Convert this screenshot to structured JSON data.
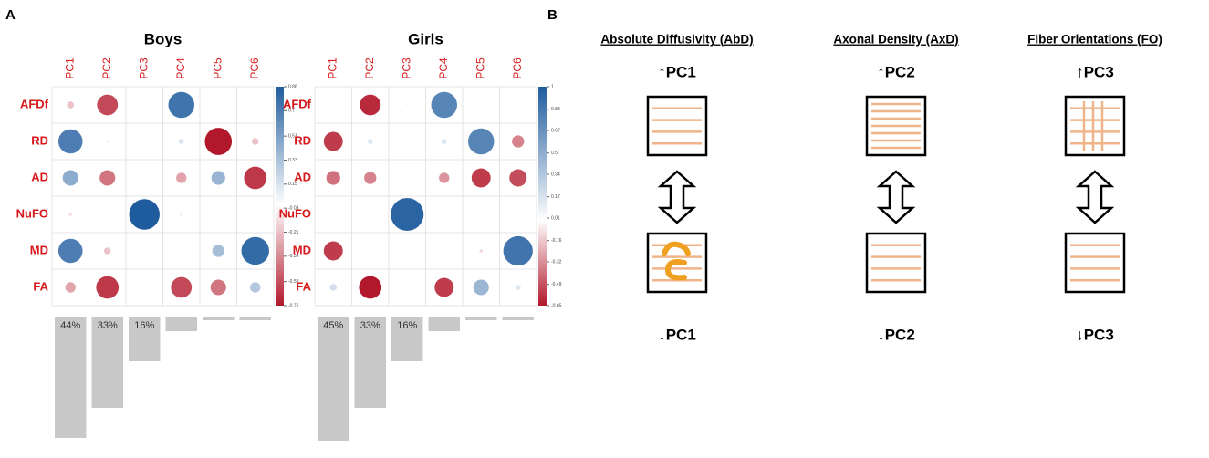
{
  "panel_a_label": "A",
  "chart_data": [
    {
      "type": "corrplot",
      "title": "Boys",
      "columns": [
        "PC1",
        "PC2",
        "PC3",
        "PC4",
        "PC5",
        "PC6"
      ],
      "rows": [
        "AFDf",
        "RD",
        "AD",
        "NuFO",
        "MD",
        "FA"
      ],
      "values": [
        [
          -0.2,
          -0.6,
          0.03,
          0.75,
          0.02,
          0.02
        ],
        [
          0.7,
          0.08,
          0.05,
          0.15,
          -0.78,
          -0.2
        ],
        [
          0.45,
          -0.45,
          0.02,
          -0.3,
          0.4,
          -0.65
        ],
        [
          -0.1,
          0.02,
          0.88,
          -0.08,
          0.01,
          0.01
        ],
        [
          0.7,
          -0.2,
          0.05,
          0.02,
          0.35,
          0.8
        ],
        [
          -0.3,
          -0.65,
          0.02,
          -0.6,
          -0.45,
          0.3
        ]
      ],
      "clim": [
        -0.76,
        0.88
      ],
      "colorbar_ticks": [
        0.88,
        0.7,
        0.51,
        0.33,
        0.15,
        -0.03,
        -0.21,
        -0.39,
        -0.58,
        -0.76
      ],
      "colors": {
        "negative": "#b2182b",
        "zero": "#ffffff",
        "positive": "#1f5c9e"
      },
      "variance": {
        "values": [
          44,
          33,
          16,
          5,
          1,
          1
        ],
        "value_labels": [
          "44%",
          "33%",
          "16%",
          null,
          null,
          null
        ],
        "color": "#c8c8c8"
      }
    },
    {
      "type": "corrplot",
      "title": "Girls",
      "columns": [
        "PC1",
        "PC2",
        "PC3",
        "PC4",
        "PC5",
        "PC6"
      ],
      "rows": [
        "AFDf",
        "RD",
        "AD",
        "NuFO",
        "MD",
        "FA"
      ],
      "values": [
        [
          0.02,
          -0.6,
          0.05,
          0.75,
          0.03,
          0.02
        ],
        [
          -0.55,
          0.15,
          0.03,
          0.15,
          0.75,
          -0.35
        ],
        [
          -0.4,
          -0.35,
          0.02,
          -0.3,
          -0.55,
          -0.5
        ],
        [
          0.05,
          0.03,
          0.95,
          0.02,
          0.01,
          0.01
        ],
        [
          -0.55,
          0.05,
          0.05,
          0.02,
          -0.1,
          0.85
        ],
        [
          0.2,
          -0.65,
          0.02,
          -0.55,
          0.45,
          0.15
        ]
      ],
      "clim": [
        -0.65,
        1
      ],
      "colorbar_ticks": [
        1,
        0.83,
        0.67,
        0.5,
        0.34,
        0.17,
        0.01,
        -0.16,
        -0.32,
        -0.49,
        -0.65
      ],
      "colors": {
        "negative": "#b2182b",
        "zero": "#ffffff",
        "positive": "#1f5c9e"
      },
      "variance": {
        "values": [
          45,
          33,
          16,
          5,
          1,
          1
        ],
        "value_labels": [
          "45%",
          "33%",
          "16%",
          null,
          null,
          null
        ],
        "color": "#c8c8c8"
      }
    }
  ],
  "panel_b": {
    "label": "B",
    "columns": [
      {
        "heading": "Absolute Diffusivity (AbD)",
        "top_label": "↑PC1",
        "bottom_label": "↓PC1"
      },
      {
        "heading": "Axonal Density (AxD)",
        "top_label": "↑PC2",
        "bottom_label": "↓PC2"
      },
      {
        "heading": "Fiber Orientations (FO)",
        "top_label": "↑PC3",
        "bottom_label": "↓PC3"
      }
    ]
  }
}
